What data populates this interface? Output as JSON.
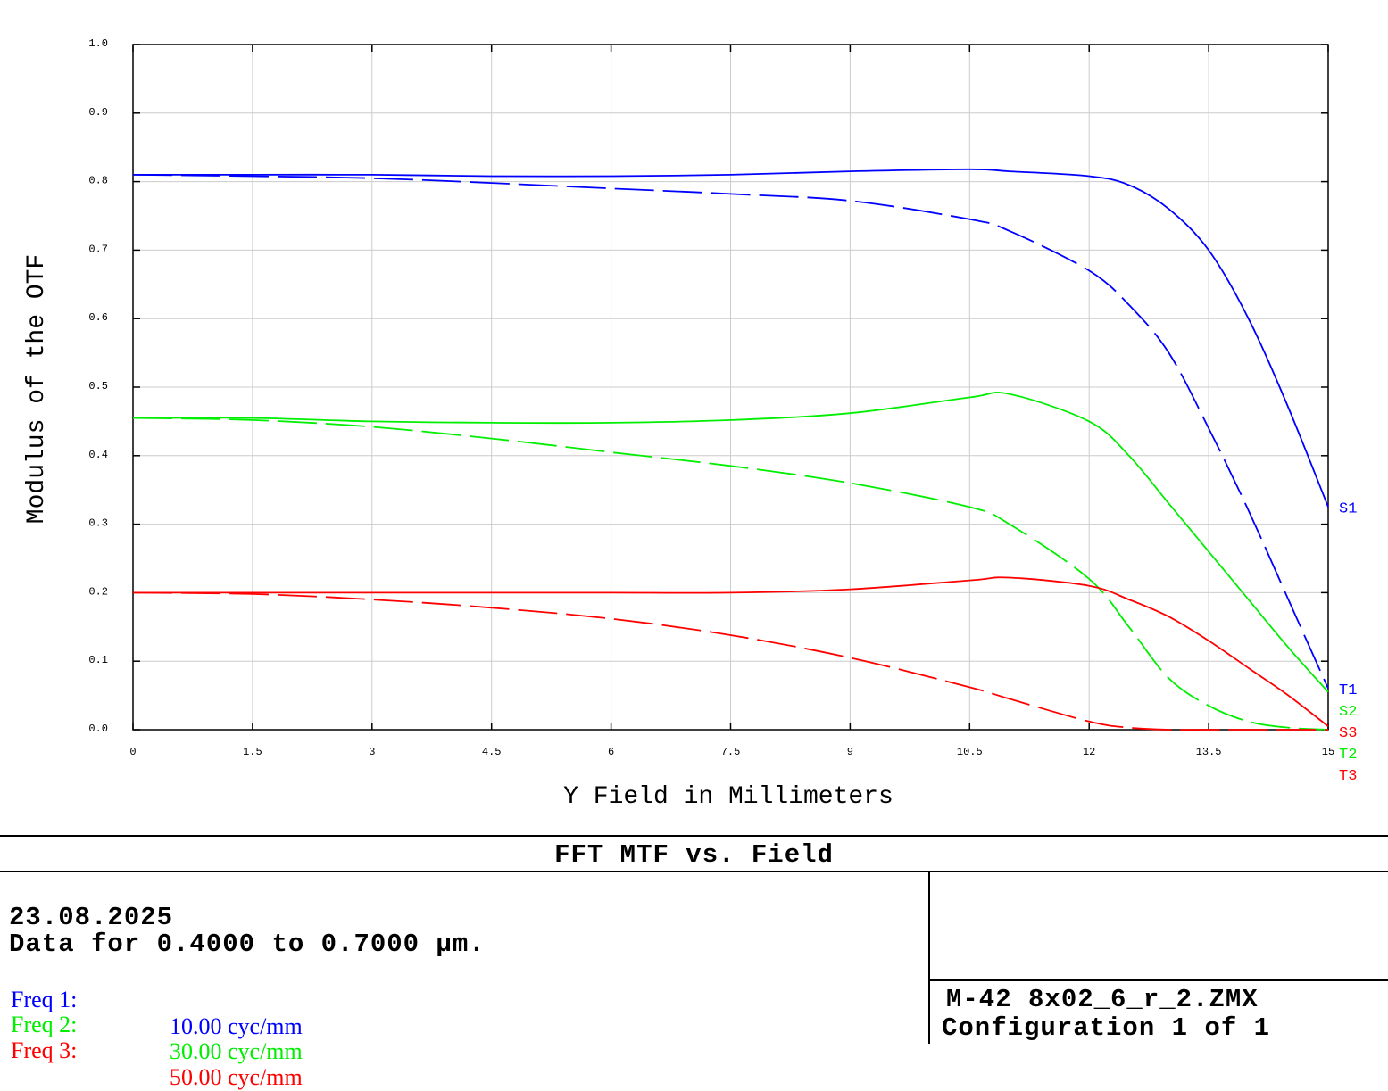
{
  "chart_data": {
    "type": "line",
    "title": "FFT MTF vs. Field",
    "xlabel": "Y Field in Millimeters",
    "ylabel": "Modulus of the OTF",
    "xlim": [
      0,
      15
    ],
    "ylim": [
      0,
      1.0
    ],
    "xticks": [
      "0",
      "1.5",
      "3",
      "4.5",
      "6",
      "7.5",
      "9",
      "10.5",
      "12",
      "13.5",
      "15"
    ],
    "yticks": [
      "0.0",
      "0.1",
      "0.2",
      "0.3",
      "0.4",
      "0.5",
      "0.6",
      "0.7",
      "0.8",
      "0.9",
      "1.0"
    ],
    "grid": true,
    "x": [
      0,
      1.5,
      3,
      4.5,
      6,
      7.5,
      9,
      10.5,
      11,
      12,
      12.5,
      13,
      13.5,
      14,
      14.5,
      15
    ],
    "series": [
      {
        "name": "S1",
        "color": "#0000ff",
        "style": "solid",
        "values": [
          0.81,
          0.81,
          0.81,
          0.808,
          0.808,
          0.81,
          0.815,
          0.818,
          0.815,
          0.808,
          0.795,
          0.76,
          0.7,
          0.6,
          0.47,
          0.325
        ]
      },
      {
        "name": "T1",
        "color": "#0000ff",
        "style": "dashed",
        "values": [
          0.81,
          0.808,
          0.805,
          0.798,
          0.79,
          0.782,
          0.772,
          0.745,
          0.728,
          0.67,
          0.62,
          0.55,
          0.44,
          0.32,
          0.19,
          0.06
        ]
      },
      {
        "name": "S2",
        "color": "#00ee00",
        "style": "solid",
        "values": [
          0.455,
          0.455,
          0.45,
          0.448,
          0.448,
          0.452,
          0.462,
          0.485,
          0.49,
          0.45,
          0.4,
          0.33,
          0.26,
          0.19,
          0.12,
          0.055
        ]
      },
      {
        "name": "T2",
        "color": "#00ee00",
        "style": "dashed",
        "values": [
          0.455,
          0.452,
          0.442,
          0.425,
          0.405,
          0.385,
          0.36,
          0.325,
          0.3,
          0.22,
          0.15,
          0.075,
          0.035,
          0.012,
          0.003,
          0.0
        ]
      },
      {
        "name": "S3",
        "color": "#ff0000",
        "style": "solid",
        "values": [
          0.2,
          0.2,
          0.2,
          0.2,
          0.2,
          0.2,
          0.205,
          0.218,
          0.222,
          0.21,
          0.19,
          0.165,
          0.13,
          0.09,
          0.05,
          0.005
        ]
      },
      {
        "name": "T3",
        "color": "#ff0000",
        "style": "dashed",
        "values": [
          0.2,
          0.198,
          0.19,
          0.178,
          0.162,
          0.138,
          0.105,
          0.062,
          0.045,
          0.012,
          0.003,
          0.0,
          0.0,
          0.0,
          0.0,
          0.0
        ]
      }
    ]
  },
  "footer": {
    "date": "23.08.2025",
    "range": "Data for 0.4000 to 0.7000 µm.",
    "freqs": [
      {
        "label": "Freq 1:",
        "value": "10.00 cyc/mm",
        "color": "#0000ff"
      },
      {
        "label": "Freq 2:",
        "value": "30.00 cyc/mm",
        "color": "#00ee00"
      },
      {
        "label": "Freq 3:",
        "value": "50.00 cyc/mm",
        "color": "#ff0000"
      }
    ],
    "file": "M-42 8x02_6_r_2.ZMX",
    "config": "Configuration 1 of 1"
  }
}
